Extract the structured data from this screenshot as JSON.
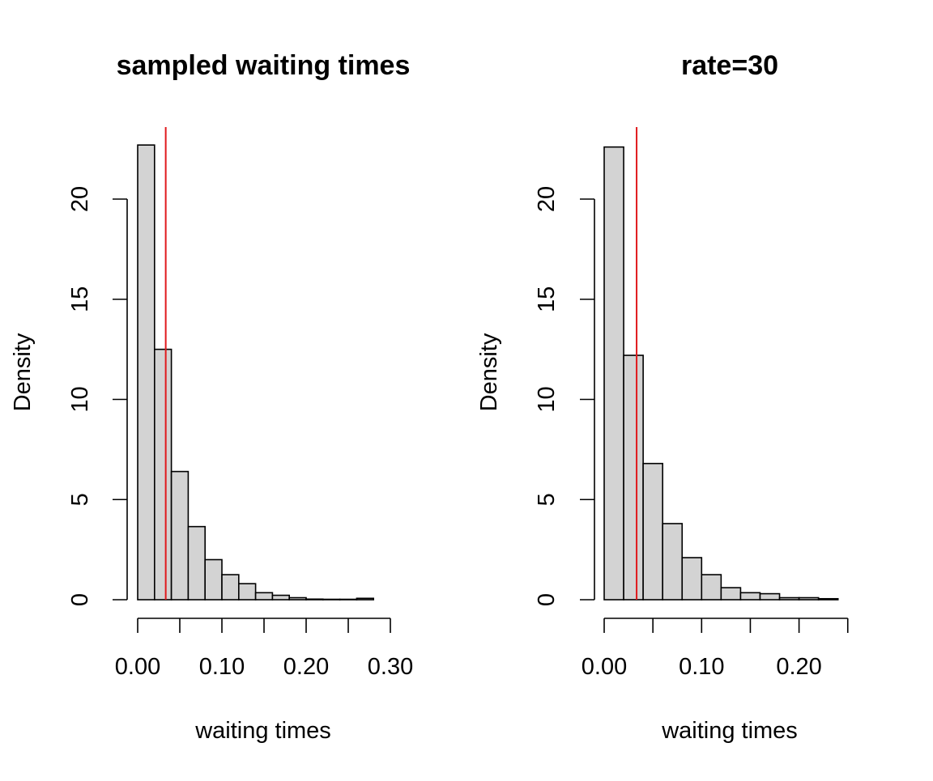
{
  "chart_data": [
    {
      "type": "bar",
      "title": "sampled waiting times",
      "xlabel": "waiting times",
      "ylabel": "Density",
      "bin_edges": [
        0.0,
        0.02,
        0.04,
        0.06,
        0.08,
        0.1,
        0.12,
        0.14,
        0.16,
        0.18,
        0.2,
        0.22,
        0.24,
        0.26,
        0.28,
        0.3
      ],
      "values": [
        22.7,
        12.5,
        6.4,
        3.65,
        2.0,
        1.25,
        0.8,
        0.35,
        0.22,
        0.1,
        0.03,
        0.02,
        0.02,
        0.07,
        0.0
      ],
      "xlim": [
        0.0,
        0.3
      ],
      "ylim": [
        0,
        23.5
      ],
      "x_ticks": [
        0.0,
        0.1,
        0.2,
        0.3
      ],
      "x_minor_ticks": [
        0.0,
        0.05,
        0.1,
        0.15,
        0.2,
        0.25,
        0.3
      ],
      "x_tick_labels": [
        "0.00",
        "0.10",
        "0.20",
        "0.30"
      ],
      "y_ticks": [
        0,
        5,
        10,
        15,
        20
      ],
      "y_tick_labels": [
        "0",
        "5",
        "10",
        "15",
        "20"
      ],
      "vline": {
        "x": 0.0333,
        "color": "#e0191c"
      },
      "bar_fill": "#d3d3d3"
    },
    {
      "type": "bar",
      "title": "rate=30",
      "xlabel": "waiting times",
      "ylabel": "Density",
      "bin_edges": [
        0.0,
        0.02,
        0.04,
        0.06,
        0.08,
        0.1,
        0.12,
        0.14,
        0.16,
        0.18,
        0.2,
        0.22,
        0.24
      ],
      "values": [
        22.6,
        12.2,
        6.8,
        3.8,
        2.1,
        1.25,
        0.6,
        0.35,
        0.3,
        0.1,
        0.1,
        0.05
      ],
      "xlim": [
        0.0,
        0.25
      ],
      "ylim": [
        0,
        23.5
      ],
      "x_ticks": [
        0.0,
        0.1,
        0.2
      ],
      "x_minor_ticks": [
        0.0,
        0.05,
        0.1,
        0.15,
        0.2,
        0.25
      ],
      "x_tick_labels": [
        "0.00",
        "0.10",
        "0.20"
      ],
      "y_ticks": [
        0,
        5,
        10,
        15,
        20
      ],
      "y_tick_labels": [
        "0",
        "5",
        "10",
        "15",
        "20"
      ],
      "vline": {
        "x": 0.0333,
        "color": "#e0191c"
      },
      "bar_fill": "#d3d3d3"
    }
  ]
}
